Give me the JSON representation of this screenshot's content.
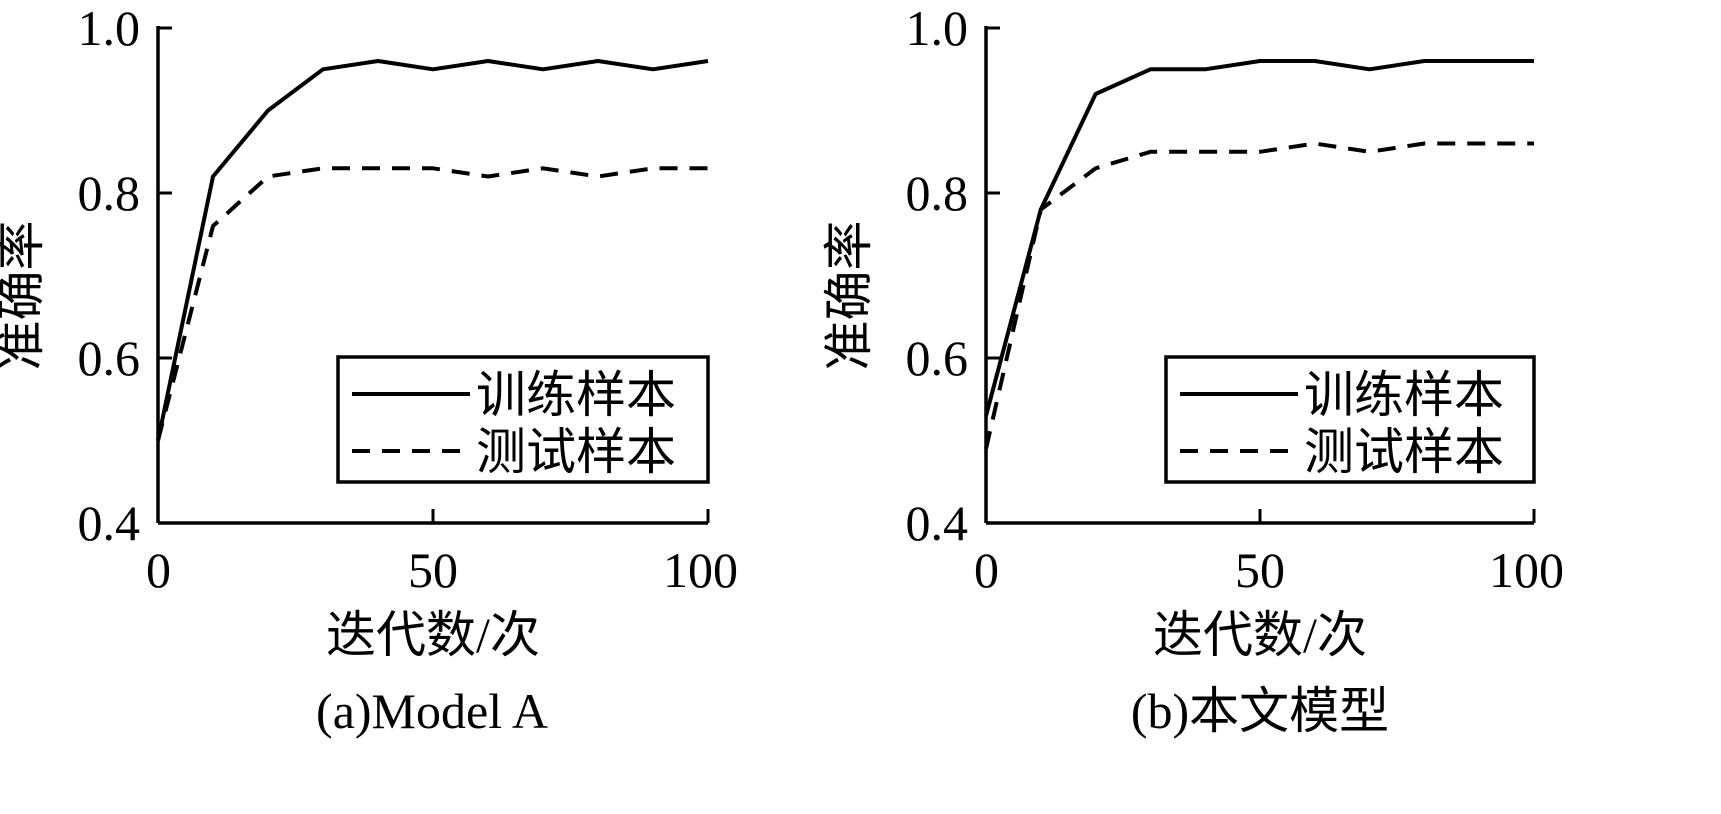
{
  "chart_data": [
    {
      "type": "line",
      "caption": "(a)Model A",
      "xlabel": "迭代数/次",
      "ylabel": "准确率",
      "xlim": [
        0,
        100
      ],
      "ylim": [
        0.4,
        1.0
      ],
      "xticks": [
        0,
        50,
        100
      ],
      "yticks": [
        0.4,
        0.6,
        0.8,
        1.0
      ],
      "xtick_labels": [
        "0",
        "50",
        "100"
      ],
      "ytick_labels": [
        "0.4",
        "0.6",
        "0.8",
        "1.0"
      ],
      "grid": false,
      "legend_position": "bottom-right",
      "x": [
        0,
        10,
        20,
        30,
        40,
        50,
        60,
        70,
        80,
        90,
        100
      ],
      "series": [
        {
          "name": "训练样本",
          "style": "solid",
          "values": [
            0.5,
            0.82,
            0.9,
            0.95,
            0.96,
            0.95,
            0.96,
            0.95,
            0.96,
            0.95,
            0.96
          ]
        },
        {
          "name": "测试样本",
          "style": "dashed",
          "values": [
            0.5,
            0.76,
            0.82,
            0.83,
            0.83,
            0.83,
            0.82,
            0.83,
            0.82,
            0.83,
            0.83
          ]
        }
      ]
    },
    {
      "type": "line",
      "caption": "(b)本文模型",
      "xlabel": "迭代数/次",
      "ylabel": "准确率",
      "xlim": [
        0,
        100
      ],
      "ylim": [
        0.4,
        1.0
      ],
      "xticks": [
        0,
        50,
        100
      ],
      "yticks": [
        0.4,
        0.6,
        0.8,
        1.0
      ],
      "xtick_labels": [
        "0",
        "50",
        "100"
      ],
      "ytick_labels": [
        "0.4",
        "0.6",
        "0.8",
        "1.0"
      ],
      "grid": false,
      "legend_position": "bottom-right",
      "x": [
        0,
        10,
        20,
        30,
        40,
        50,
        60,
        70,
        80,
        90,
        100
      ],
      "series": [
        {
          "name": "训练样本",
          "style": "solid",
          "values": [
            0.53,
            0.78,
            0.92,
            0.95,
            0.95,
            0.96,
            0.96,
            0.95,
            0.96,
            0.96,
            0.96
          ]
        },
        {
          "name": "测试样本",
          "style": "dashed",
          "values": [
            0.49,
            0.78,
            0.83,
            0.85,
            0.85,
            0.85,
            0.86,
            0.85,
            0.86,
            0.86,
            0.86
          ]
        }
      ]
    }
  ],
  "colors": {
    "line": "#000000",
    "background": "#ffffff"
  }
}
